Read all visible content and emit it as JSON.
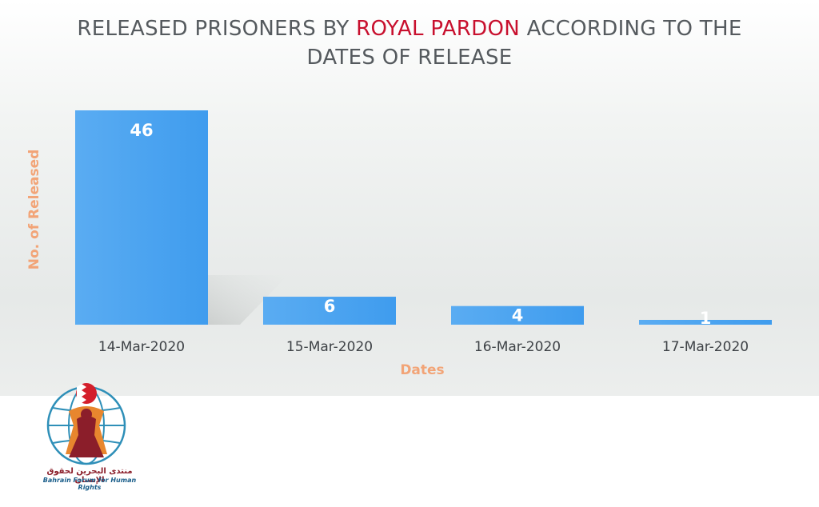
{
  "chart_data": {
    "type": "bar",
    "title_parts": [
      "RELEASED PRISONERS BY ",
      "ROYAL PARDON",
      " ACCORDING TO THE DATES OF RELEASE"
    ],
    "categories": [
      "14-Mar-2020",
      "15-Mar-2020",
      "16-Mar-2020",
      "17-Mar-2020"
    ],
    "values": [
      46,
      6,
      4,
      1
    ],
    "data_labels": [
      "46",
      "6",
      "4",
      "1"
    ],
    "xlabel": "Dates",
    "ylabel": "No. of Released",
    "ylim": [
      0,
      46
    ],
    "grid": false,
    "legend": "none",
    "colors": {
      "bar": "#4aa3f0",
      "bar_light": "#6cb6f4",
      "title": "#555a5e",
      "title_accent": "#c8102e",
      "axis_title": "#f2a477"
    }
  },
  "logo": {
    "arabic_text": "منتدى البحرين لحقوق الإنسان",
    "english_text": "Bahrain Forum for Human Rights",
    "icon": "bahrain-forum-logo-icon"
  }
}
